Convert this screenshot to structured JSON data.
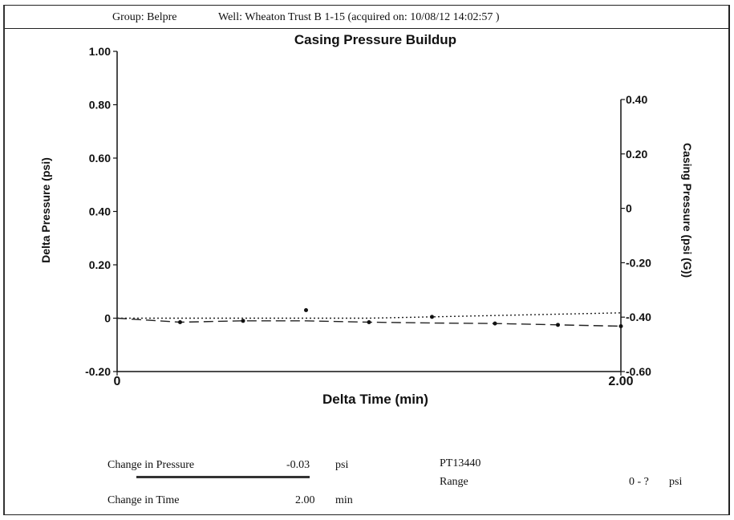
{
  "header": {
    "group": "Group: Belpre",
    "well": "Well: Wheaton Trust B   1-15 (acquired on: 10/08/12 14:02:57 )"
  },
  "chart_data": {
    "type": "scatter",
    "title": "Casing Pressure Buildup",
    "xlabel": "Delta Time (min)",
    "ylabel": "Delta Pressure (psi)",
    "y2label": "Casing Pressure (psi (G))",
    "xlim": [
      0,
      2
    ],
    "ylim": [
      -0.2,
      1.0
    ],
    "y2lim": [
      -0.6,
      0.4
    ],
    "x_ticks": [
      "0",
      "2.00"
    ],
    "y_ticks": [
      "1.00",
      "0.80",
      "0.60",
      "0.40",
      "0.20",
      "0",
      "-0.20"
    ],
    "y2_ticks": [
      "0.40",
      "0.20",
      "0",
      "-0.20",
      "-0.40",
      "-0.60"
    ],
    "series": [
      {
        "style": "dotted",
        "x": [
          0,
          0.25,
          0.5,
          0.75,
          1.0,
          1.25,
          1.5,
          1.75,
          2.0
        ],
        "y": [
          0,
          0,
          0,
          0,
          0,
          0.005,
          0.01,
          0.015,
          0.02
        ]
      },
      {
        "style": "dashed",
        "x": [
          0,
          0.25,
          0.5,
          0.75,
          1.0,
          1.25,
          1.5,
          1.75,
          2.0
        ],
        "y": [
          0,
          -0.015,
          -0.01,
          -0.01,
          -0.015,
          -0.018,
          -0.02,
          -0.025,
          -0.03
        ]
      }
    ],
    "markers": {
      "x": [
        0.25,
        0.5,
        0.75,
        1.0,
        1.25,
        1.5,
        1.75,
        2.0
      ],
      "y": [
        -0.015,
        -0.01,
        0.03,
        -0.015,
        0.005,
        -0.02,
        -0.025,
        -0.03
      ]
    }
  },
  "footer": {
    "change_pressure_label": "Change in Pressure",
    "change_pressure_value": "-0.03",
    "change_pressure_unit": "psi",
    "change_time_label": "Change in Time",
    "change_time_value": "2.00",
    "change_time_unit": "min",
    "gauge_id": "PT13440",
    "range_label": "Range",
    "range_value": "0 - ?",
    "range_unit": "psi"
  }
}
